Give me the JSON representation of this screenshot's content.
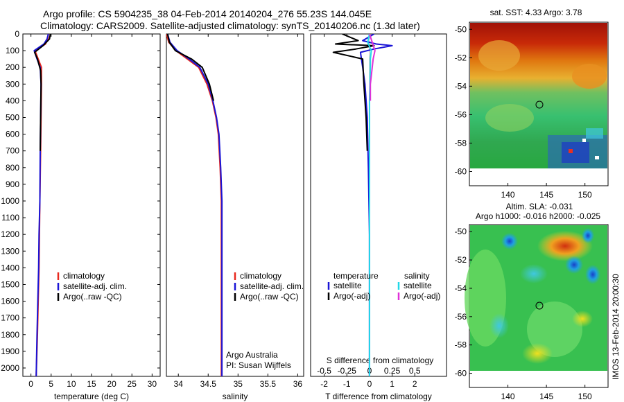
{
  "title": {
    "line1": "Argo profile: CS 5904235_38 04-Feb-2014 20140204_276 55.23S 144.045E",
    "line2": "Climatology: CARS2009. Satellite-adjusted climatology: synTS_20140206.nc (1.3d later)"
  },
  "side_text": "IMOS 13-Feb-2014 20:00:30",
  "colors": {
    "climatology": "#e8281e",
    "satellite": "#1a14d6",
    "argo": "#000000",
    "satellite_diff_s": "#22d8e8",
    "argo_adj_s": "#e030d8"
  },
  "chart_data": [
    {
      "type": "line",
      "id": "temperature",
      "xlabel": "temperature (deg C)",
      "ylabel": "",
      "xlim": [
        -2,
        32
      ],
      "ylim": [
        2050,
        0
      ],
      "xticks": [
        0,
        5,
        10,
        15,
        20,
        25,
        30
      ],
      "yticks": [
        0,
        100,
        200,
        300,
        400,
        500,
        600,
        700,
        800,
        900,
        1000,
        1100,
        1200,
        1300,
        1400,
        1500,
        1600,
        1700,
        1800,
        1900,
        2000
      ],
      "legend": [
        "climatology",
        "satellite-adj. clim.",
        "Argo(..raw -QC)"
      ],
      "legend_position": "lower-middle",
      "series": [
        {
          "name": "climatology",
          "color": "#e8281e",
          "x": [
            4.3,
            4.2,
            3.6,
            1.0,
            1.8,
            2.6,
            2.6,
            2.5,
            2.4,
            2.2,
            2.1,
            2.0,
            1.8,
            1.6,
            1.3
          ],
          "y": [
            0,
            30,
            60,
            100,
            150,
            200,
            300,
            500,
            700,
            1000,
            1200,
            1400,
            1600,
            1800,
            2050
          ]
        },
        {
          "name": "satellite-adj. clim.",
          "color": "#1a14d6",
          "x": [
            4.3,
            4.0,
            3.2,
            0.8,
            1.5,
            2.3,
            2.5,
            2.4,
            2.3,
            2.2,
            2.0,
            1.9,
            1.7,
            1.5,
            1.3
          ],
          "y": [
            0,
            30,
            60,
            100,
            150,
            200,
            300,
            500,
            700,
            1000,
            1200,
            1400,
            1600,
            1800,
            2050
          ]
        },
        {
          "name": "Argo(..raw -QC)",
          "color": "#000000",
          "x": [
            4.8,
            4.6,
            3.0,
            0.9,
            1.6,
            2.4,
            2.5,
            2.4,
            2.3
          ],
          "y": [
            0,
            30,
            70,
            110,
            150,
            220,
            300,
            500,
            700
          ]
        }
      ]
    },
    {
      "type": "line",
      "id": "salinity",
      "xlabel": "salinity",
      "ylabel": "",
      "xlim": [
        33.8,
        36.1
      ],
      "ylim": [
        2050,
        0
      ],
      "xticks": [
        34,
        34.5,
        35,
        35.5,
        36
      ],
      "legend": [
        "climatology",
        "satellite-adj. clim.",
        "Argo(..raw -QC)"
      ],
      "legend_position": "lower-middle",
      "annotations": [
        "Argo Australia",
        "PI: Susan Wijffels"
      ],
      "series": [
        {
          "name": "climatology",
          "color": "#e8281e",
          "x": [
            33.8,
            33.84,
            33.96,
            34.15,
            34.34,
            34.48,
            34.57,
            34.63,
            34.67,
            34.7,
            34.72,
            34.72,
            34.72,
            34.72,
            34.72
          ],
          "y": [
            0,
            50,
            100,
            150,
            200,
            300,
            400,
            500,
            600,
            800,
            1000,
            1200,
            1500,
            1800,
            2050
          ]
        },
        {
          "name": "satellite-adj. clim.",
          "color": "#1a14d6",
          "x": [
            33.82,
            33.86,
            33.98,
            34.18,
            34.36,
            34.5,
            34.58,
            34.64,
            34.68,
            34.71,
            34.73,
            34.73,
            34.73,
            34.73,
            34.73
          ],
          "y": [
            0,
            50,
            100,
            150,
            200,
            300,
            400,
            500,
            600,
            800,
            1000,
            1200,
            1500,
            1800,
            2050
          ]
        },
        {
          "name": "Argo(..raw -QC)",
          "color": "#000000",
          "x": [
            33.82,
            33.85,
            33.95,
            34.22,
            34.4,
            34.52,
            34.59
          ],
          "y": [
            0,
            50,
            100,
            150,
            200,
            300,
            400
          ]
        }
      ]
    },
    {
      "type": "line",
      "id": "difference",
      "xlabel": "T difference from climatology",
      "top_axis_label": "S difference from climatology",
      "xlim": [
        -2.6,
        3.4
      ],
      "top_xlim": [
        -0.65,
        0.85
      ],
      "ylim": [
        2050,
        0
      ],
      "xticks": [
        -2,
        -1,
        0,
        1,
        2
      ],
      "top_xticks": [
        -0.5,
        -0.25,
        0,
        0.25,
        0.5
      ],
      "legend_headers": {
        "temperature": "temperature",
        "salinity": "salinity"
      },
      "legend": [
        "satellite",
        "Argo(-adj)",
        "satellite",
        "Argo(-adj)"
      ],
      "legend_position": "middle",
      "series": [
        {
          "name": "satellite",
          "group": "temperature",
          "color": "#1a14d6",
          "x": [
            0.2,
            -0.3,
            0.3,
            1.0,
            0.2,
            -0.4,
            -0.3,
            -0.2,
            -0.1,
            -0.05,
            0.0,
            0.0
          ],
          "y": [
            0,
            40,
            60,
            70,
            90,
            110,
            200,
            300,
            500,
            800,
            1200,
            2050
          ]
        },
        {
          "name": "Argo(-adj)",
          "group": "temperature",
          "color": "#000000",
          "x": [
            -1.2,
            -0.5,
            -1.5,
            0.2,
            -0.6,
            -1.6,
            -0.3,
            -0.25,
            -0.15,
            -0.1
          ],
          "y": [
            0,
            40,
            60,
            70,
            90,
            110,
            150,
            300,
            500,
            700
          ]
        },
        {
          "name": "satellite",
          "group": "salinity",
          "color": "#22d8e8",
          "x": [
            0.0,
            -0.02,
            0.02,
            0.01,
            0.01,
            0.0,
            0.0,
            0.0,
            0.0
          ],
          "y": [
            0,
            50,
            100,
            150,
            200,
            400,
            800,
            1500,
            2050
          ]
        },
        {
          "name": "Argo(-adj)",
          "group": "salinity",
          "color": "#e030d8",
          "x": [
            0.0,
            0.03,
            0.06,
            0.04,
            0.03,
            0.01,
            0.01
          ],
          "y": [
            0,
            50,
            100,
            150,
            200,
            300,
            400
          ]
        }
      ]
    },
    {
      "type": "heatmap",
      "id": "sst_map",
      "title": "sat. SST: 4.33 Argo: 3.78",
      "xlim": [
        135,
        153
      ],
      "ylim": [
        -61,
        -49.5
      ],
      "xticks": [
        140,
        145,
        150
      ],
      "yticks": [
        -50,
        -52,
        -54,
        -56,
        -58,
        -60
      ],
      "marker": {
        "lon": 144.045,
        "lat": -55.23
      }
    },
    {
      "type": "heatmap",
      "id": "sla_map",
      "title": "Altim. SLA: -0.031",
      "subtitle": "Argo h1000: -0.016 h2000: -0.025",
      "xlim": [
        135,
        153
      ],
      "ylim": [
        -61,
        -49.5
      ],
      "xticks": [
        140,
        145,
        150
      ],
      "yticks": [
        -50,
        -52,
        -54,
        -56,
        -58,
        -60
      ],
      "marker": {
        "lon": 144.045,
        "lat": -55.23
      }
    }
  ]
}
